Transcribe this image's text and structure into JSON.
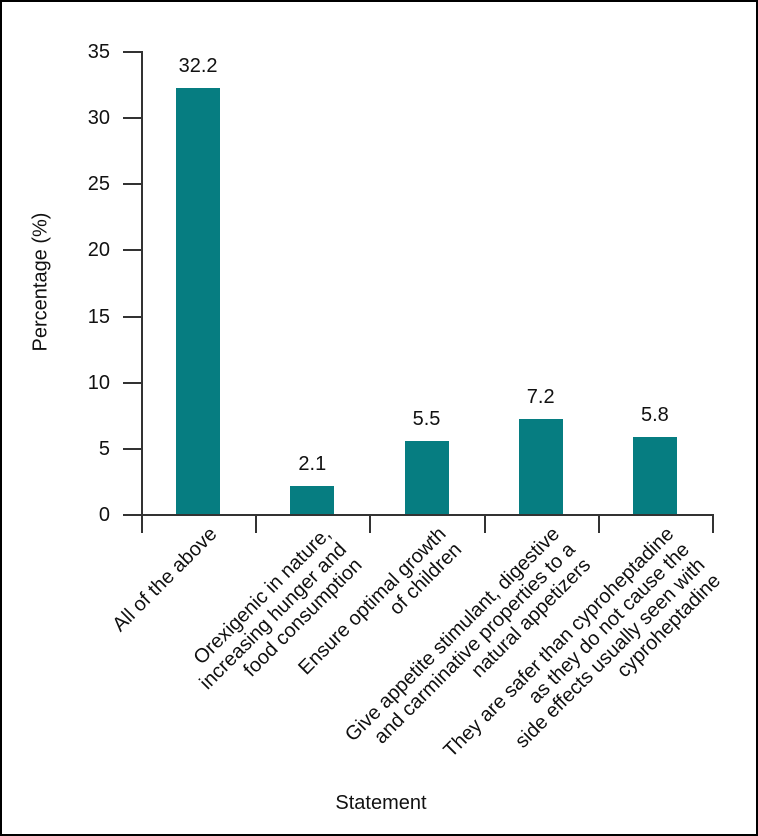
{
  "figure": {
    "background": "#ffffff",
    "border_color": "#000000"
  },
  "chart_data": {
    "type": "bar",
    "title": "",
    "xlabel": "Statement",
    "ylabel": "Percentage (%)",
    "categories": [
      "All of the above",
      "Orexigenic in nature,\nincreasing hunger and\nfood consumption",
      "Ensure optimal growth\nof children",
      "Give appetite stimulant, digestive\nand carminative properties to a\nnatural appetizers",
      "They are safer than cyproheptadine\nas they do not cause the\nside effects usually seen with\ncyproheptadine"
    ],
    "values": [
      32.2,
      2.1,
      5.5,
      7.2,
      5.8
    ],
    "value_labels": [
      "32.2",
      "2.1",
      "5.5",
      "7.2",
      "5.8"
    ],
    "ylim": [
      0,
      35
    ],
    "yticks": [
      0,
      5,
      10,
      15,
      20,
      25,
      30,
      35
    ],
    "x_tick_label_rotation_deg": 45,
    "grid": false,
    "legend": "none",
    "bar_color": "#067d81",
    "axis_color": "#333333",
    "text_color": "#111111"
  }
}
